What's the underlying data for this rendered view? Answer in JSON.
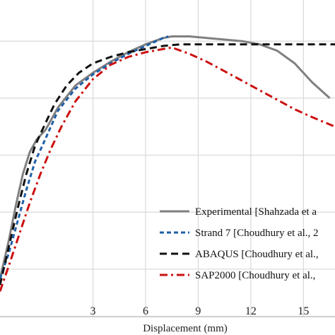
{
  "chart_data": {
    "type": "line",
    "title": "",
    "xlabel": "Displacement (mm)",
    "ylabel": "",
    "xlim": [
      -2.3,
      16.8
    ],
    "ylim": [
      0,
      10
    ],
    "x_ticks": [
      3,
      6,
      9,
      12,
      15
    ],
    "y_grid": [
      1.5,
      3.3,
      5.1,
      6.9,
      8.7,
      10.5
    ],
    "grid": true,
    "legend_position": "bottom-right",
    "series": [
      {
        "name": "Experimental [Shahzada et a",
        "color": "#808080",
        "dash": "solid",
        "x": [
          -2.3,
          -1.8,
          -1.4,
          -1.0,
          -0.6,
          -0.2,
          0.3,
          1.0,
          2.0,
          3.0,
          4.0,
          5.0,
          6.0,
          7.0,
          7.5,
          8.5,
          9.5,
          10.5,
          11.5,
          12.5,
          13.5,
          14.5,
          15.5,
          16.5
        ],
        "y": [
          1.2,
          2.4,
          3.5,
          4.5,
          5.2,
          5.6,
          5.9,
          6.6,
          7.3,
          7.7,
          8.05,
          8.35,
          8.6,
          8.8,
          8.85,
          8.85,
          8.8,
          8.75,
          8.7,
          8.6,
          8.4,
          8.0,
          7.4,
          6.9
        ]
      },
      {
        "name": "Strand 7 [Choudhury et al., 2",
        "color": "#1f5fa8",
        "dash": "short-dash",
        "x": [
          -2.3,
          -1.8,
          -1.3,
          -0.8,
          -0.3,
          0.2,
          1.0,
          2.0,
          3.0,
          4.0,
          5.0,
          6.0,
          7.0,
          7.3
        ],
        "y": [
          1.2,
          2.0,
          3.0,
          4.0,
          4.9,
          5.5,
          6.5,
          7.2,
          7.65,
          8.0,
          8.3,
          8.55,
          8.8,
          8.85
        ]
      },
      {
        "name": "ABAQUS [Choudhury et al.,",
        "color": "#111111",
        "dash": "long-dash",
        "x": [
          -2.3,
          -1.8,
          -1.3,
          -0.8,
          -0.3,
          0.2,
          0.8,
          1.5,
          2.2,
          3.0,
          4.0,
          5.0,
          6.0,
          7.0,
          8.0,
          9.0,
          10.0,
          11.0,
          12.0,
          13.0,
          14.0,
          15.0,
          16.0,
          16.8
        ],
        "y": [
          1.0,
          2.2,
          3.4,
          4.5,
          5.4,
          6.0,
          6.7,
          7.3,
          7.7,
          8.0,
          8.2,
          8.35,
          8.45,
          8.55,
          8.6,
          8.6,
          8.6,
          8.6,
          8.6,
          8.6,
          8.6,
          8.6,
          8.6,
          8.6
        ]
      },
      {
        "name": "SAP2000 [Choudhury et al.,",
        "color": "#cc1111",
        "dash": "dash-dot",
        "x": [
          -2.3,
          -1.8,
          -1.2,
          -0.6,
          0.0,
          0.6,
          1.2,
          2.0,
          3.0,
          4.0,
          5.0,
          6.0,
          7.0,
          7.5,
          8.5,
          9.5,
          10.5,
          11.5,
          12.5,
          13.5,
          14.5,
          15.5,
          16.8
        ],
        "y": [
          0.8,
          1.6,
          2.6,
          3.6,
          4.5,
          5.3,
          6.0,
          6.8,
          7.5,
          7.95,
          8.2,
          8.35,
          8.45,
          8.5,
          8.3,
          8.05,
          7.75,
          7.45,
          7.15,
          6.85,
          6.55,
          6.3,
          6.0
        ]
      }
    ]
  }
}
